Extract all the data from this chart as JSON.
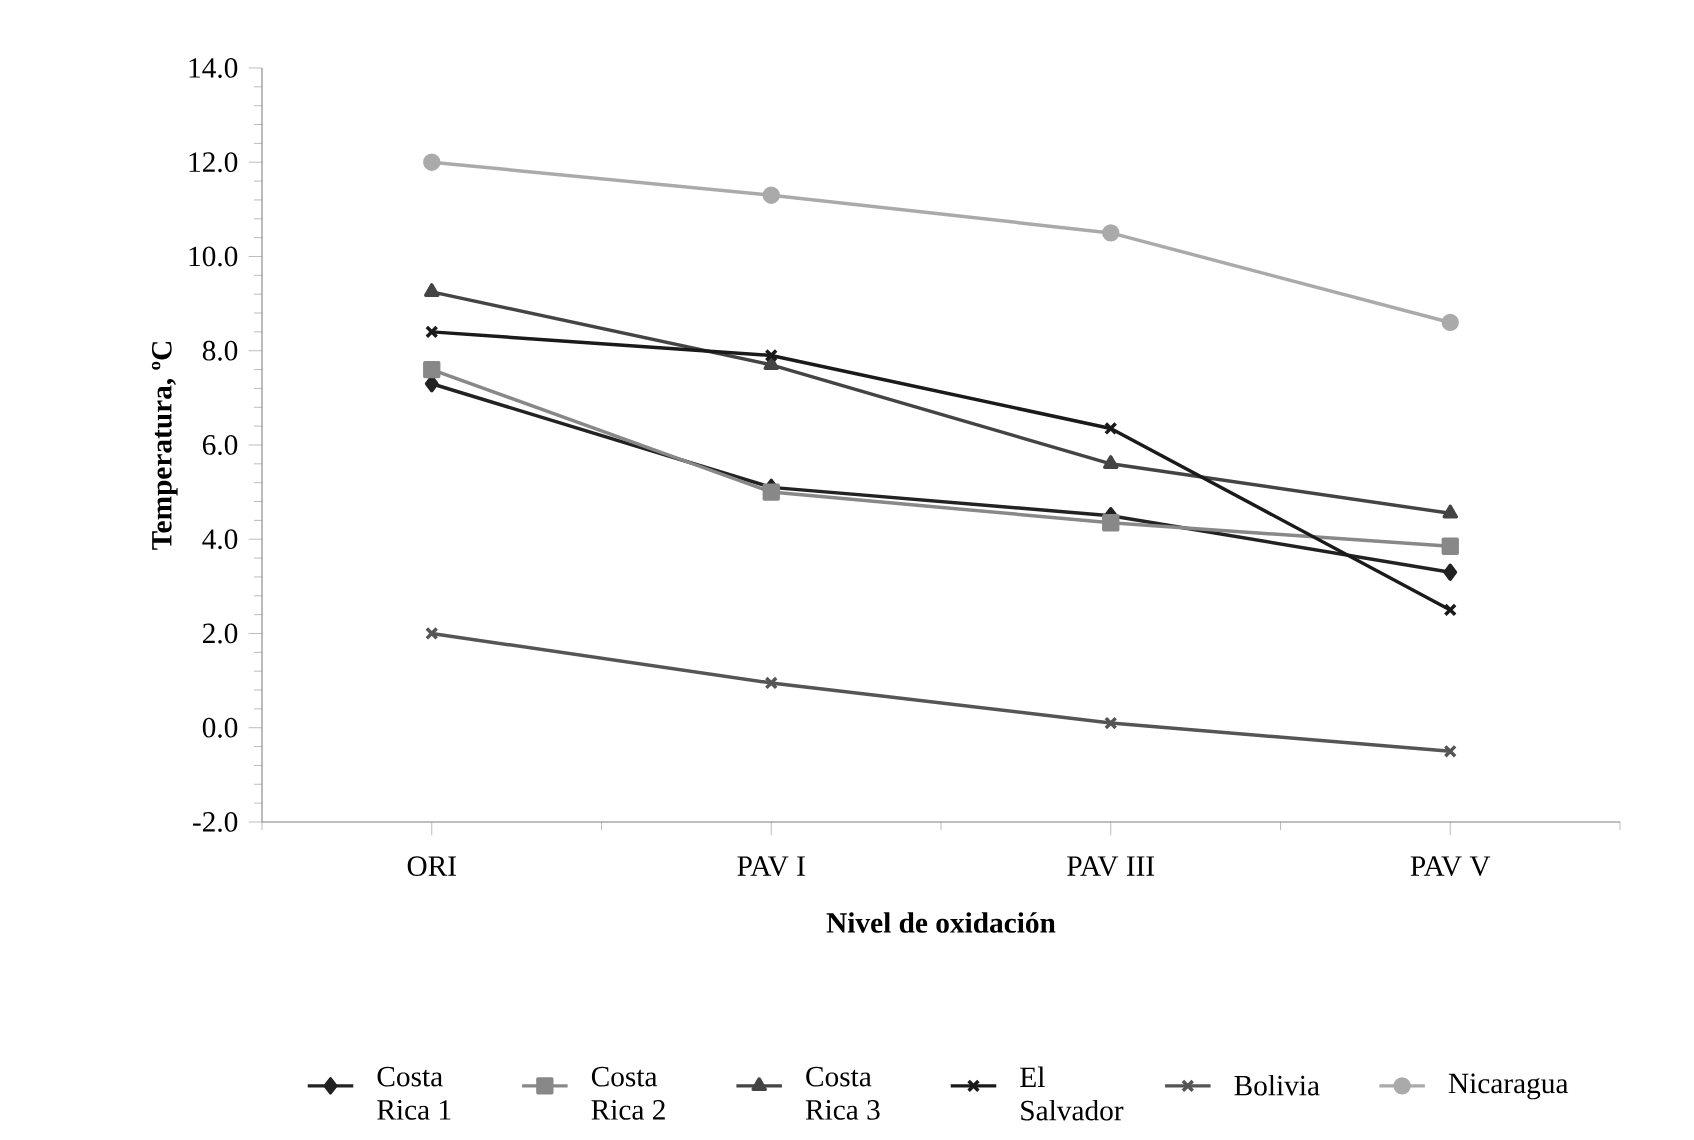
{
  "chart_data": {
    "type": "line",
    "xlabel": "Nivel de oxidación",
    "ylabel": "Temperatura, ºC",
    "categories": [
      "ORI",
      "PAV I",
      "PAV III",
      "PAV V"
    ],
    "ylim": [
      -2,
      14
    ],
    "yticks": [
      {
        "value": -2,
        "label": "-2.0"
      },
      {
        "value": 0,
        "label": "0.0"
      },
      {
        "value": 2,
        "label": "2.0"
      },
      {
        "value": 4,
        "label": "4.0"
      },
      {
        "value": 6,
        "label": "6.0"
      },
      {
        "value": 8,
        "label": "8.0"
      },
      {
        "value": 10,
        "label": "10.0"
      },
      {
        "value": 12,
        "label": "12.0"
      },
      {
        "value": 14,
        "label": "14.0"
      }
    ],
    "grid": false,
    "legend": "bottom",
    "line_style": "solid",
    "series": [
      {
        "name": "Costa Rica 1",
        "color": "#222222",
        "marker": "diamond",
        "values": [
          7.3,
          5.1,
          4.5,
          3.3
        ]
      },
      {
        "name": "Costa Rica 2",
        "color": "#888888",
        "marker": "square",
        "values": [
          7.6,
          5.0,
          4.35,
          3.85
        ]
      },
      {
        "name": "Costa Rica 3",
        "color": "#444444",
        "marker": "triangle",
        "values": [
          9.25,
          7.7,
          5.6,
          4.55
        ]
      },
      {
        "name": "El Salvador",
        "color": "#1a1a1a",
        "marker": "cross",
        "values": [
          8.4,
          7.9,
          6.35,
          2.5
        ]
      },
      {
        "name": "Bolivia",
        "color": "#555555",
        "marker": "cross",
        "values": [
          2.0,
          0.95,
          0.1,
          -0.5
        ]
      },
      {
        "name": "Nicaragua",
        "color": "#aaaaaa",
        "marker": "circle",
        "values": [
          12.0,
          11.3,
          10.5,
          8.6
        ]
      }
    ]
  }
}
